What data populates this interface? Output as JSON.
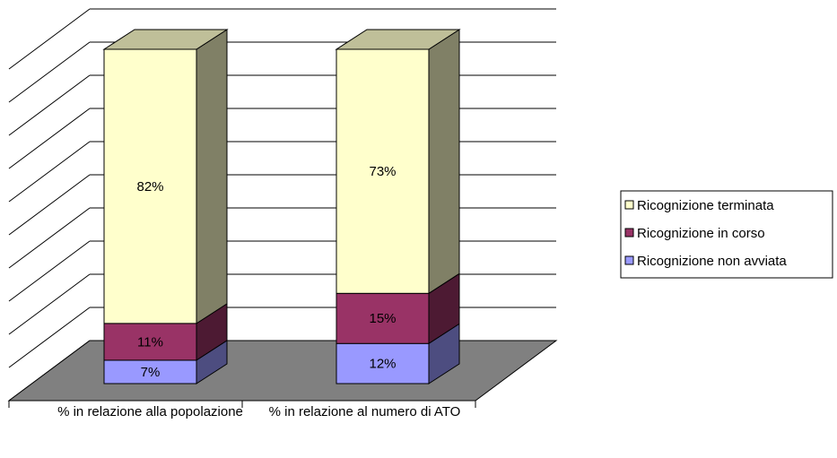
{
  "chart_data": {
    "type": "bar3d_stacked",
    "categories": [
      "% in relazione alla popolazione",
      "% in relazione al numero di ATO"
    ],
    "series": [
      {
        "name": "Ricognizione non avviata",
        "color": "#9999ff",
        "values": [
          7,
          12
        ],
        "value_labels": [
          "7%",
          "12%"
        ]
      },
      {
        "name": "Ricognizione in corso",
        "color": "#993366",
        "values": [
          11,
          15
        ],
        "value_labels": [
          "11%",
          "15%"
        ]
      },
      {
        "name": "Ricognizione terminata",
        "color": "#ffffcc",
        "values": [
          82,
          73
        ],
        "value_labels": [
          "82%",
          "73%"
        ]
      }
    ],
    "ylim": [
      0,
      100
    ],
    "yticks": [
      0,
      10,
      20,
      30,
      40,
      50,
      60,
      70,
      80,
      90,
      100
    ],
    "grid": true,
    "legend": "right"
  }
}
